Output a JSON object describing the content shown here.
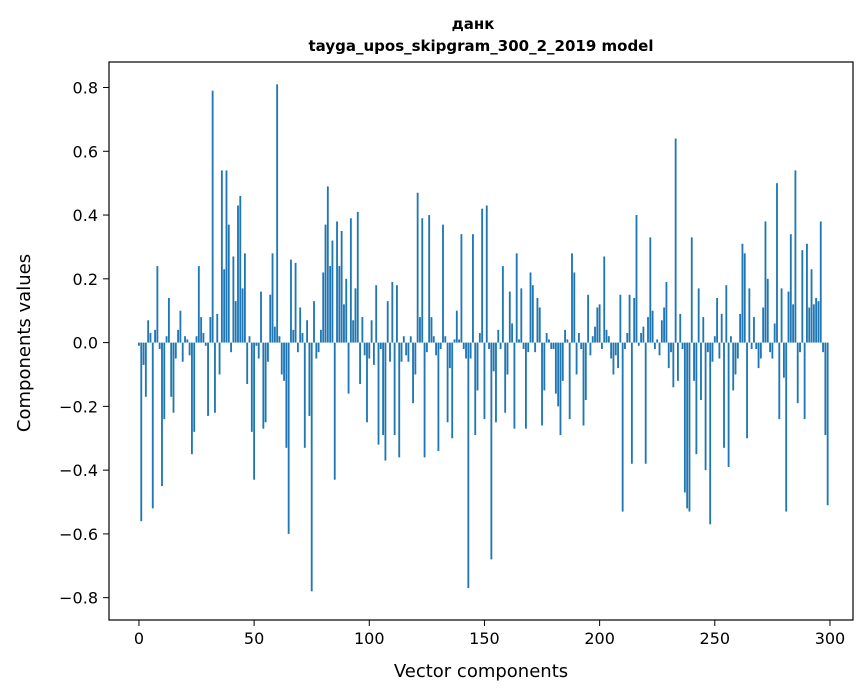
{
  "chart_data": {
    "type": "bar",
    "title": "данк",
    "subtitle": "tayga_upos_skipgram_300_2_2019 model",
    "xlabel": "Vector components",
    "ylabel": "Components values",
    "xlim": [
      -13,
      310
    ],
    "ylim": [
      -0.87,
      0.88
    ],
    "xticks": [
      0,
      50,
      100,
      150,
      200,
      250,
      300
    ],
    "xtick_labels": [
      "0",
      "50",
      "100",
      "150",
      "200",
      "250",
      "300"
    ],
    "yticks": [
      -0.8,
      -0.6,
      -0.4,
      -0.2,
      0.0,
      0.2,
      0.4,
      0.6,
      0.8
    ],
    "ytick_labels": [
      "−0.8",
      "−0.6",
      "−0.4",
      "−0.2",
      "0.0",
      "0.2",
      "0.4",
      "0.6",
      "0.8"
    ],
    "grid": false,
    "color": "#1f77b4",
    "values": [
      -0.01,
      -0.56,
      -0.07,
      -0.17,
      0.07,
      0.03,
      -0.52,
      0.04,
      0.24,
      -0.02,
      -0.45,
      -0.24,
      0.02,
      0.14,
      -0.17,
      -0.22,
      -0.05,
      0.04,
      0.1,
      -0.06,
      0.02,
      0.01,
      -0.04,
      -0.35,
      -0.28,
      0.02,
      0.24,
      0.08,
      0.03,
      -0.01,
      -0.23,
      0.08,
      0.79,
      -0.22,
      0.09,
      -0.1,
      0.54,
      0.23,
      0.54,
      0.37,
      -0.03,
      0.27,
      0.13,
      0.43,
      0.46,
      0.17,
      0.28,
      -0.13,
      0.02,
      -0.28,
      -0.43,
      -0.01,
      -0.05,
      0.16,
      -0.27,
      -0.25,
      -0.06,
      0.15,
      0.28,
      0.05,
      0.81,
      0.02,
      -0.1,
      -0.12,
      -0.33,
      -0.6,
      0.26,
      0.04,
      0.25,
      -0.03,
      0.11,
      0.03,
      -0.33,
      0.07,
      -0.23,
      -0.78,
      0.13,
      -0.05,
      -0.03,
      0.04,
      0.22,
      0.37,
      0.49,
      0.24,
      0.32,
      -0.43,
      0.38,
      0.24,
      0.35,
      0.12,
      0.2,
      -0.16,
      0.39,
      0.07,
      0.17,
      0.41,
      -0.13,
      0.08,
      -0.04,
      -0.25,
      -0.05,
      0.07,
      -0.07,
      0.18,
      -0.32,
      -0.02,
      -0.29,
      -0.37,
      0.13,
      -0.06,
      0.19,
      -0.29,
      0.18,
      -0.36,
      -0.06,
      0.02,
      -0.04,
      -0.06,
      0.02,
      -0.19,
      -0.1,
      0.47,
      0.08,
      0.39,
      -0.36,
      -0.03,
      0.4,
      0.08,
      0.02,
      -0.04,
      -0.34,
      -0.02,
      0.37,
      0.02,
      -0.25,
      -0.08,
      -0.3,
      0.01,
      0.1,
      0.01,
      0.34,
      -0.02,
      -0.05,
      -0.77,
      -0.05,
      0.34,
      -0.29,
      -0.15,
      0.03,
      0.42,
      -0.24,
      0.43,
      -0.02,
      -0.68,
      -0.09,
      -0.25,
      0.04,
      -0.02,
      0.24,
      -0.22,
      -0.1,
      0.16,
      0.06,
      -0.27,
      0.28,
      0.01,
      0.17,
      -0.02,
      -0.27,
      -0.03,
      0.22,
      0.18,
      -0.03,
      0.14,
      0.11,
      -0.26,
      -0.15,
      0.03,
      0.01,
      -0.02,
      -0.02,
      -0.16,
      -0.2,
      -0.29,
      -0.12,
      0.04,
      0.01,
      -0.24,
      0.28,
      0.22,
      -0.1,
      0.03,
      -0.02,
      -0.26,
      -0.18,
      0.15,
      -0.04,
      0.02,
      0.05,
      0.11,
      0.12,
      -0.02,
      0.27,
      0.04,
      0.02,
      -0.05,
      -0.1,
      -0.04,
      -0.08,
      0.15,
      -0.53,
      -0.02,
      0.03,
      0.15,
      -0.38,
      0.14,
      0.4,
      -0.01,
      0.03,
      0.05,
      -0.38,
      0.08,
      0.33,
      0.1,
      -0.02,
      0.01,
      -0.04,
      0.07,
      0.11,
      0.19,
      -0.08,
      -0.03,
      -0.14,
      0.64,
      -0.12,
      0.09,
      -0.02,
      -0.47,
      -0.52,
      -0.53,
      0.33,
      -0.12,
      -0.35,
      0.17,
      -0.18,
      0.08,
      -0.4,
      -0.03,
      -0.57,
      -0.06,
      0.02,
      0.14,
      -0.05,
      0.09,
      -0.33,
      0.18,
      -0.39,
      0.02,
      -0.15,
      -0.1,
      -0.05,
      0.09,
      0.31,
      0.28,
      -0.3,
      0.17,
      -0.02,
      0.08,
      -0.02,
      -0.08,
      -0.05,
      0.11,
      0.38,
      0.2,
      -0.03,
      -0.05,
      0.06,
      0.5,
      -0.24,
      0.17,
      -0.11,
      -0.53,
      0.16,
      0.34,
      0.12,
      0.54,
      -0.19,
      -0.03,
      0.29,
      -0.24,
      0.31,
      0.11,
      0.23,
      0.12,
      0.14,
      0.13,
      0.38,
      -0.03,
      -0.29,
      -0.51
    ]
  }
}
